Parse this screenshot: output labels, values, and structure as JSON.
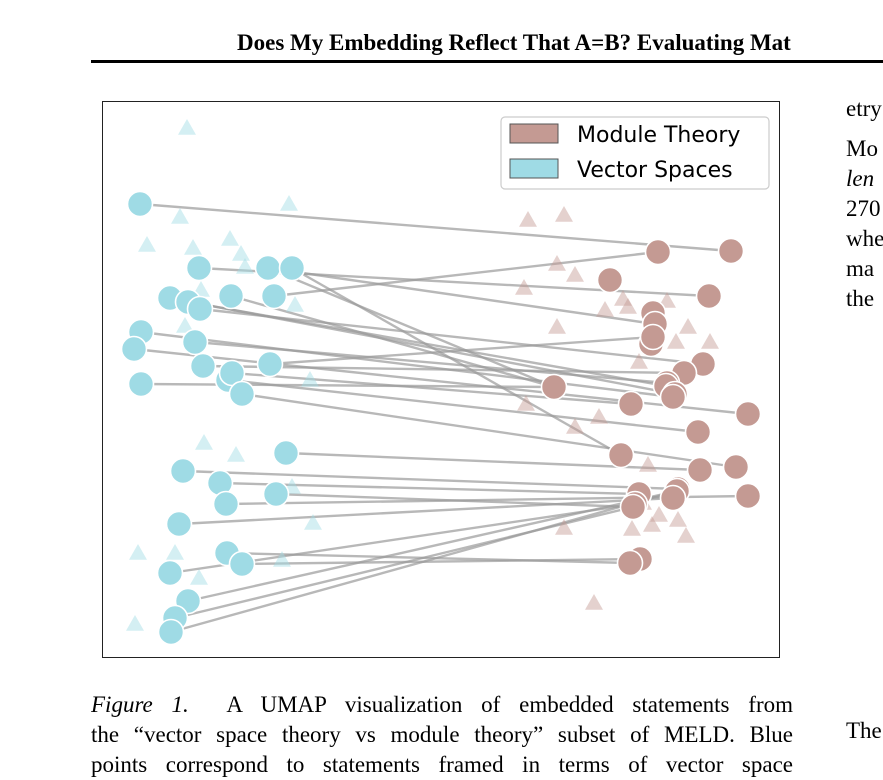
{
  "page": {
    "running_head": "Does My Embedding Reflect That A=B? Evaluating Mat",
    "side_column_lines": [
      {
        "text": "etry",
        "italic": false
      },
      {
        "text": "Mo",
        "italic": false
      },
      {
        "text": "len",
        "italic": true
      },
      {
        "text": "270",
        "italic": false
      },
      {
        "text": "whe",
        "italic": false
      },
      {
        "text": "ma",
        "italic": false
      },
      {
        "text": "the",
        "italic": false
      }
    ],
    "bottom_right_text": "The",
    "caption": {
      "label": "Figure 1.",
      "line1_rest": "A UMAP visualization of embedded statements from",
      "line2": "the “vector space theory vs module theory” subset of MELD. Blue",
      "line3": "points correspond to statements framed in terms of vector space"
    }
  },
  "colors": {
    "vector_fill": "#9fdbe5",
    "module_fill": "#c49a93",
    "link_line": "#9a9a9a"
  },
  "chart_data": {
    "type": "scatter",
    "title": "",
    "xlabel": "",
    "ylabel": "",
    "axes_ticks": "none",
    "legend": {
      "position": "top-right",
      "entries": [
        {
          "name": "Module Theory",
          "color": "#c49a93"
        },
        {
          "name": "Vector Spaces",
          "color": "#9fdbe5"
        }
      ]
    },
    "xlim": [
      0,
      676
    ],
    "ylim": [
      554,
      0
    ],
    "series": [
      {
        "name": "Vector Spaces",
        "marker": "circle",
        "points": [
          [
            37,
            102
          ],
          [
            96,
            166
          ],
          [
            165,
            166
          ],
          [
            189,
            166
          ],
          [
            67,
            196
          ],
          [
            85,
            200
          ],
          [
            97,
            207
          ],
          [
            128,
            194
          ],
          [
            171,
            194
          ],
          [
            38,
            230
          ],
          [
            31,
            247
          ],
          [
            92,
            240
          ],
          [
            100,
            264
          ],
          [
            167,
            262
          ],
          [
            125,
            278
          ],
          [
            129,
            271
          ],
          [
            139,
            292
          ],
          [
            38,
            282
          ],
          [
            183,
            351
          ],
          [
            80,
            369
          ],
          [
            117,
            381
          ],
          [
            123,
            402
          ],
          [
            173,
            392
          ],
          [
            76,
            422
          ],
          [
            124,
            451
          ],
          [
            139,
            462
          ],
          [
            67,
            471
          ],
          [
            85,
            499
          ],
          [
            72,
            516
          ],
          [
            68,
            530
          ]
        ]
      },
      {
        "name": "Module Theory",
        "marker": "circle",
        "points": [
          [
            628,
            149
          ],
          [
            555,
            150
          ],
          [
            507,
            178
          ],
          [
            606,
            194
          ],
          [
            550,
            211
          ],
          [
            552,
            222
          ],
          [
            548,
            242
          ],
          [
            550,
            235
          ],
          [
            600,
            262
          ],
          [
            581,
            271
          ],
          [
            564,
            281
          ],
          [
            563,
            284
          ],
          [
            572,
            292
          ],
          [
            570,
            295
          ],
          [
            645,
            312
          ],
          [
            528,
            302
          ],
          [
            595,
            330
          ],
          [
            451,
            285
          ],
          [
            518,
            353
          ],
          [
            633,
            365
          ],
          [
            597,
            368
          ],
          [
            575,
            387
          ],
          [
            536,
            392
          ],
          [
            532,
            402
          ],
          [
            530,
            405
          ],
          [
            574,
            389
          ],
          [
            570,
            396
          ],
          [
            645,
            394
          ],
          [
            537,
            457
          ],
          [
            527,
            461
          ]
        ]
      },
      {
        "name": "Vector Spaces (faint)",
        "marker": "triangle",
        "points": [
          [
            84,
            26
          ],
          [
            186,
            102
          ],
          [
            77,
            115
          ],
          [
            44,
            143
          ],
          [
            90,
            146
          ],
          [
            127,
            137
          ],
          [
            138,
            152
          ],
          [
            142,
            165
          ],
          [
            98,
            188
          ],
          [
            192,
            203
          ],
          [
            82,
            224
          ],
          [
            207,
            278
          ],
          [
            101,
            341
          ],
          [
            133,
            353
          ],
          [
            189,
            385
          ],
          [
            210,
            421
          ],
          [
            35,
            451
          ],
          [
            72,
            451
          ],
          [
            96,
            476
          ],
          [
            32,
            522
          ],
          [
            179,
            458
          ]
        ]
      },
      {
        "name": "Module Theory (faint)",
        "marker": "triangle",
        "points": [
          [
            425,
            118
          ],
          [
            461,
            113
          ],
          [
            454,
            162
          ],
          [
            472,
            173
          ],
          [
            421,
            186
          ],
          [
            520,
            197
          ],
          [
            525,
            205
          ],
          [
            564,
            199
          ],
          [
            502,
            208
          ],
          [
            454,
            225
          ],
          [
            585,
            225
          ],
          [
            607,
            240
          ],
          [
            573,
            240
          ],
          [
            536,
            260
          ],
          [
            423,
            302
          ],
          [
            496,
            315
          ],
          [
            472,
            325
          ],
          [
            545,
            363
          ],
          [
            540,
            401
          ],
          [
            556,
            413
          ],
          [
            549,
            423
          ],
          [
            575,
            418
          ],
          [
            529,
            427
          ],
          [
            583,
            434
          ],
          [
            461,
            426
          ],
          [
            491,
            501
          ]
        ]
      }
    ],
    "links": [
      [
        0,
        0
      ],
      [
        1,
        3
      ],
      [
        2,
        5
      ],
      [
        2,
        17
      ],
      [
        3,
        18
      ],
      [
        4,
        12
      ],
      [
        5,
        11
      ],
      [
        6,
        8
      ],
      [
        7,
        17
      ],
      [
        8,
        1
      ],
      [
        9,
        13
      ],
      [
        10,
        14
      ],
      [
        11,
        10
      ],
      [
        12,
        9
      ],
      [
        13,
        7
      ],
      [
        14,
        16
      ],
      [
        15,
        15
      ],
      [
        16,
        19
      ],
      [
        17,
        17
      ],
      [
        18,
        20
      ],
      [
        19,
        21
      ],
      [
        20,
        22
      ],
      [
        21,
        27
      ],
      [
        22,
        24
      ],
      [
        23,
        26
      ],
      [
        24,
        29
      ],
      [
        25,
        28
      ],
      [
        26,
        23
      ],
      [
        27,
        25
      ],
      [
        28,
        24
      ],
      [
        29,
        25
      ]
    ]
  }
}
